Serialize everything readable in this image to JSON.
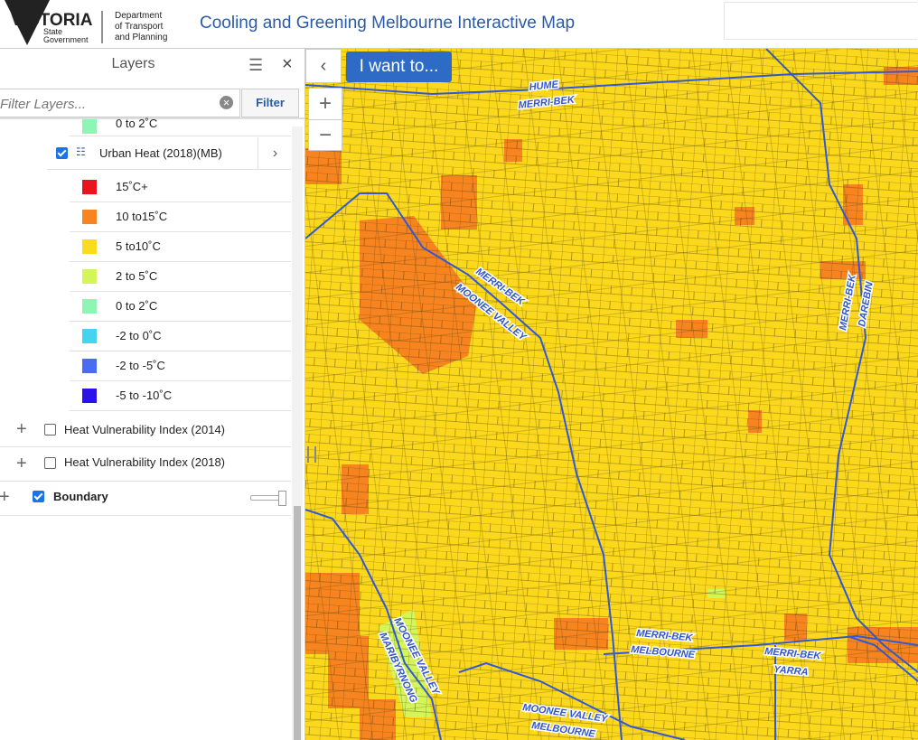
{
  "header": {
    "org": "VICTORIA",
    "org_sub": [
      "State",
      "Government"
    ],
    "dept": [
      "Department",
      "of Transport",
      "and Planning"
    ],
    "title": "Cooling and Greening Melbourne Interactive Map"
  },
  "panel": {
    "title": "Layers",
    "filter_placeholder": "Filter Layers...",
    "filter_button": "Filter",
    "partial_item": "0 to 2˚C",
    "group": "Urban Heat (2018)(MB)",
    "legend": [
      {
        "label": "15˚C+",
        "color": "#e8141e"
      },
      {
        "label": "10 to15˚C",
        "color": "#f7841f"
      },
      {
        "label": "5 to10˚C",
        "color": "#fbdc1c"
      },
      {
        "label": "2 to 5˚C",
        "color": "#d4f55a"
      },
      {
        "label": "0 to 2˚C",
        "color": "#8ef5b4"
      },
      {
        "label": "-2 to 0˚C",
        "color": "#45d4f0"
      },
      {
        "label": "-2 to -5˚C",
        "color": "#4a6cf0"
      },
      {
        "label": "-5 to -10˚C",
        "color": "#2a12e8"
      }
    ],
    "layers": [
      "Heat Vulnerability Index (2014)",
      "Heat Vulnerability Index (2018)"
    ],
    "boundary": "Boundary"
  },
  "map": {
    "button": "I want to...",
    "labels": [
      "HUME",
      "MERRI-BEK",
      "MERRI-BEK",
      "MOONEE VALLEY",
      "MERRI-BEK",
      "DAREBIN",
      "MERRI-BEK",
      "MELBOURNE",
      "MERRI-BEK",
      "YARRA",
      "MOONEE VALLEY",
      "MARIBYRNONG",
      "MOONEE VALLEY",
      "MELBOURNE"
    ]
  }
}
